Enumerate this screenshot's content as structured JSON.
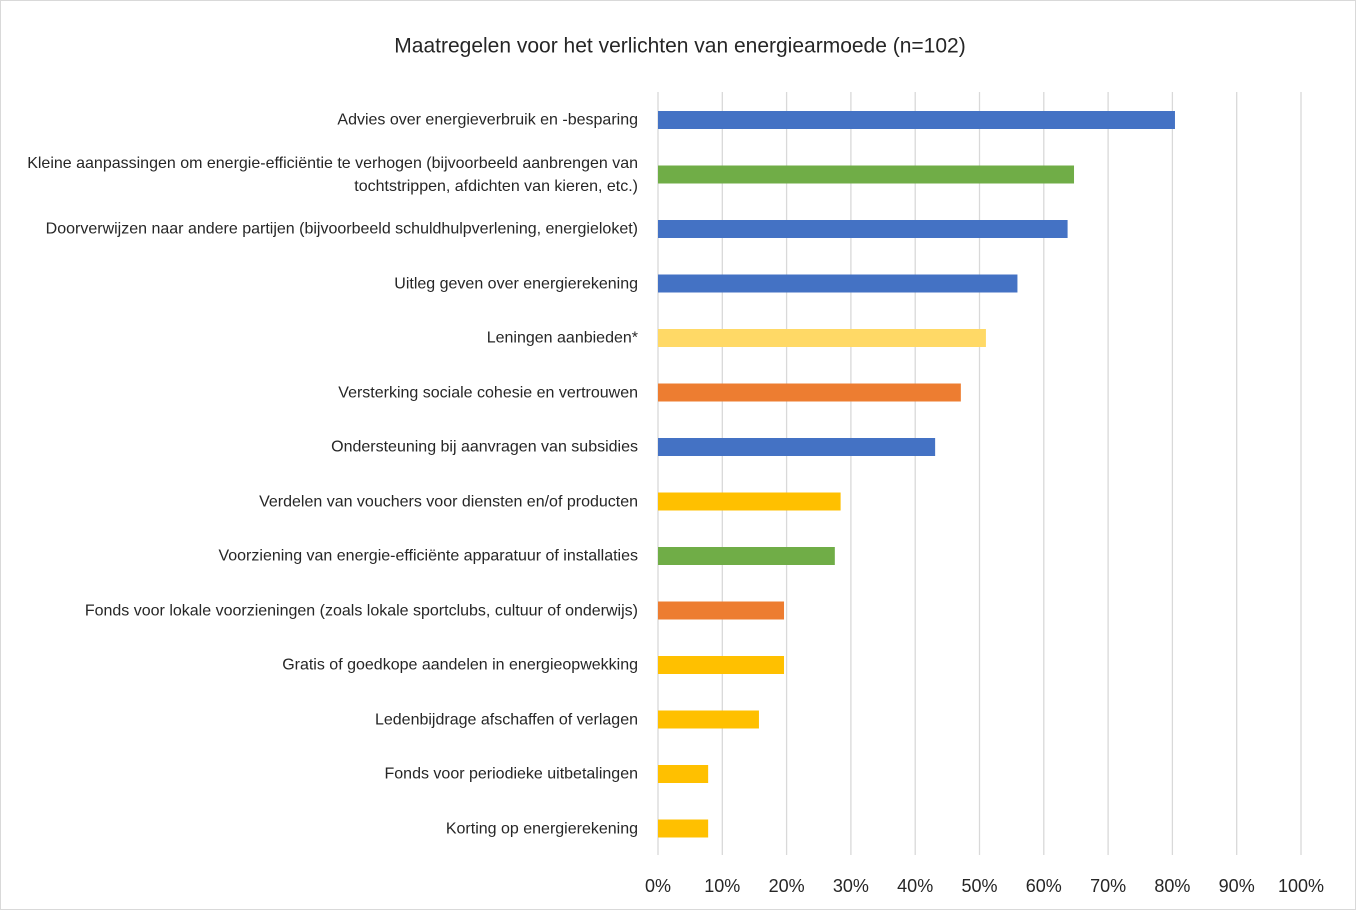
{
  "chart_data": {
    "type": "barh",
    "title": "Maatregelen voor het verlichten van energiearmoede (n=102)",
    "categories": [
      "Advies over energieverbruik en -besparing",
      "Kleine aanpassingen om energie-efficiëntie te verhogen (bijvoorbeeld aanbrengen van tochtstrippen, afdichten van kieren, etc.)",
      "Doorverwijzen naar andere partijen (bijvoorbeeld schuldhulpverlening, energieloket)",
      "Uitleg geven over energierekening",
      "Leningen aanbieden*",
      "Versterking sociale cohesie en vertrouwen",
      "Ondersteuning bij aanvragen van subsidies",
      "Verdelen van vouchers voor diensten en/of producten",
      "Voorziening van energie-efficiënte apparatuur of installaties",
      "Fonds voor lokale voorzieningen (zoals lokale sportclubs, cultuur of onderwijs)",
      "Gratis of goedkope aandelen in energieopwekking",
      "Ledenbijdrage afschaffen of verlagen",
      "Fonds voor periodieke uitbetalingen",
      "Korting op energierekening"
    ],
    "values": [
      80.4,
      64.7,
      63.7,
      55.9,
      51.0,
      47.1,
      43.1,
      28.4,
      27.5,
      19.6,
      19.6,
      15.7,
      7.8,
      7.8
    ],
    "colors": [
      "#4472c4",
      "#70ad47",
      "#4472c4",
      "#4472c4",
      "#ffd966",
      "#ed7d31",
      "#4472c4",
      "#ffc000",
      "#70ad47",
      "#ed7d31",
      "#ffc000",
      "#ffc000",
      "#ffc000",
      "#ffc000"
    ],
    "xlim": [
      0,
      100
    ],
    "xticks": [
      {
        "value": 0,
        "label": "0%"
      },
      {
        "value": 10,
        "label": "10%"
      },
      {
        "value": 20,
        "label": "20%"
      },
      {
        "value": 30,
        "label": "30%"
      },
      {
        "value": 40,
        "label": "40%"
      },
      {
        "value": 50,
        "label": "50%"
      },
      {
        "value": 60,
        "label": "60%"
      },
      {
        "value": 70,
        "label": "70%"
      },
      {
        "value": 80,
        "label": "80%"
      },
      {
        "value": 90,
        "label": "90%"
      },
      {
        "value": 100,
        "label": "100%"
      }
    ],
    "grid": true
  }
}
